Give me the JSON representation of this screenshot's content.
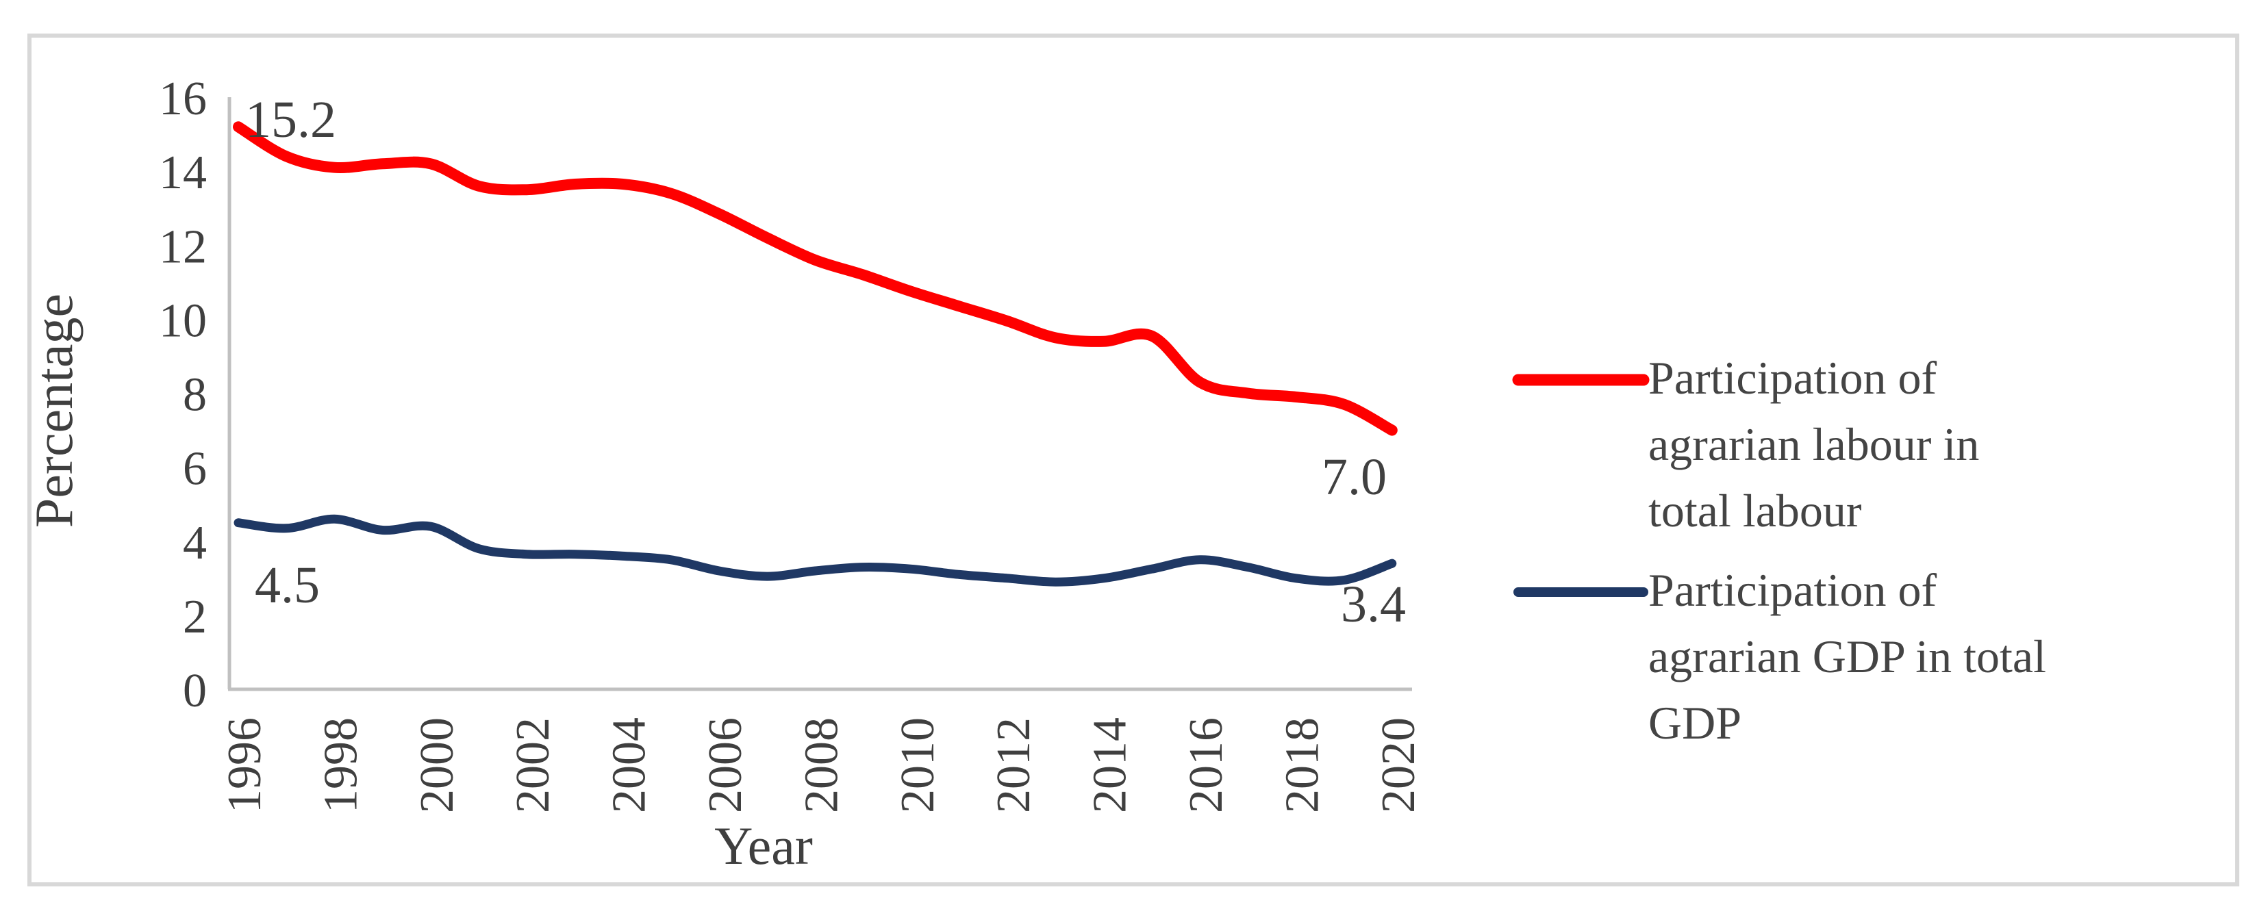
{
  "figure": {
    "background": "#ffffff",
    "border_color": "#d8d8d8",
    "axis_color": "#c0c0c0",
    "text_color": "#3f3f3f"
  },
  "chart_data": {
    "type": "line",
    "title": "",
    "xlabel": "Year",
    "ylabel": "Percentage",
    "x": [
      1996,
      1997,
      1998,
      1999,
      2000,
      2001,
      2002,
      2003,
      2004,
      2005,
      2006,
      2007,
      2008,
      2009,
      2010,
      2011,
      2012,
      2013,
      2014,
      2015,
      2016,
      2017,
      2018,
      2019,
      2020
    ],
    "x_tick_labels": [
      "1996",
      "1998",
      "2000",
      "2002",
      "2004",
      "2006",
      "2008",
      "2010",
      "2012",
      "2014",
      "2016",
      "2018",
      "2020"
    ],
    "y_ticks": [
      0,
      2,
      4,
      6,
      8,
      10,
      12,
      14,
      16
    ],
    "y_tick_labels": [
      "0",
      "2",
      "4",
      "6",
      "8",
      "10",
      "12",
      "14",
      "16"
    ],
    "ylim": [
      0,
      16
    ],
    "grid": false,
    "legend_position": "right",
    "series": [
      {
        "name": "Participation of agrarian labour in total labour",
        "color": "#fe0000",
        "values": [
          15.2,
          14.4,
          14.1,
          14.2,
          14.2,
          13.6,
          13.5,
          13.65,
          13.65,
          13.4,
          12.85,
          12.2,
          11.6,
          11.2,
          10.75,
          10.35,
          9.95,
          9.5,
          9.4,
          9.55,
          8.3,
          8.0,
          7.9,
          7.7,
          7.0
        ],
        "first_point_label": "15.2",
        "last_point_label": "7.0",
        "legend_lines": [
          "Participation of",
          "agrarian labour in",
          "total labour"
        ]
      },
      {
        "name": "Participation of agrarian GDP in total GDP",
        "color": "#1f3864",
        "values": [
          4.5,
          4.35,
          4.6,
          4.3,
          4.4,
          3.8,
          3.65,
          3.65,
          3.6,
          3.5,
          3.2,
          3.05,
          3.2,
          3.3,
          3.25,
          3.1,
          3.0,
          2.9,
          3.0,
          3.25,
          3.5,
          3.3,
          3.0,
          2.95,
          3.4
        ],
        "first_point_label": "4.5",
        "last_point_label": "3.4",
        "legend_lines": [
          "Participation of",
          "agrarian GDP in total",
          "GDP"
        ]
      }
    ]
  }
}
